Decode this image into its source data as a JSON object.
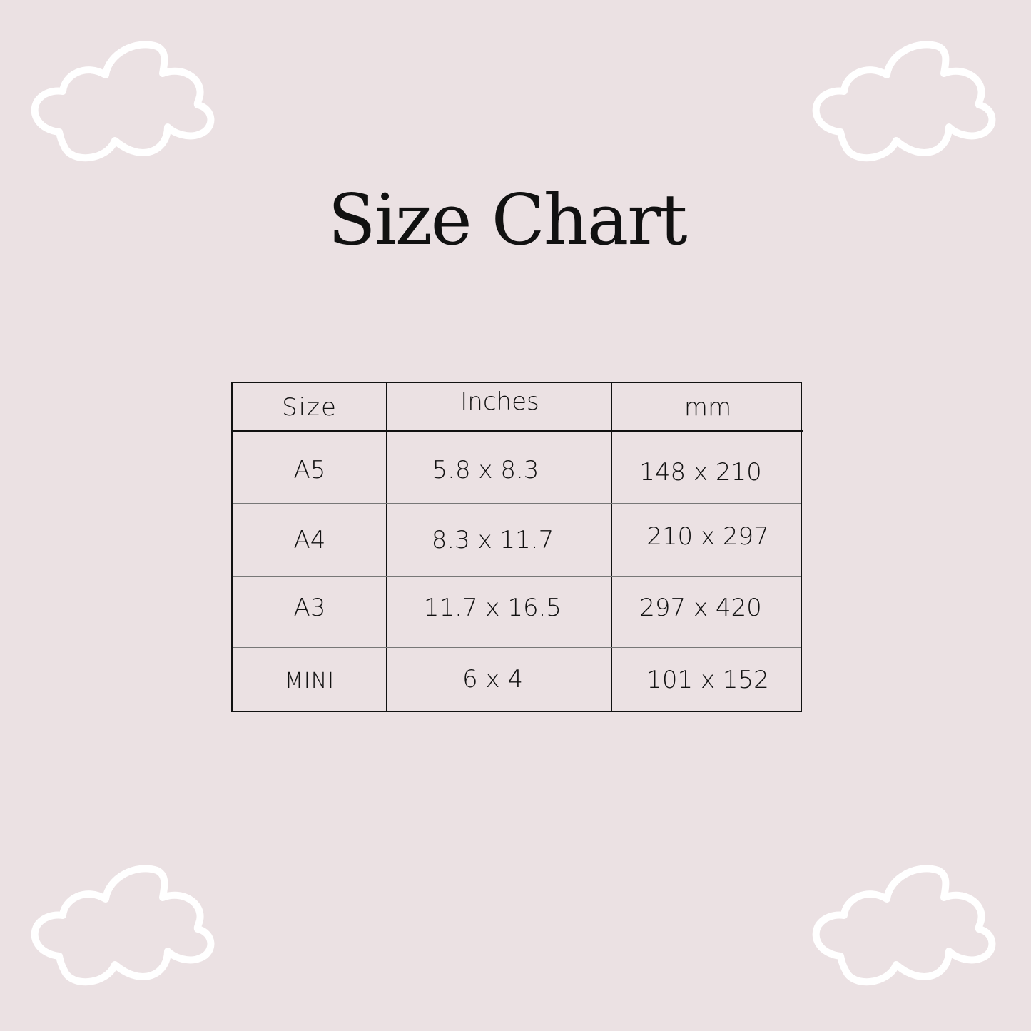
{
  "title": "Size Chart",
  "colors": {
    "background": "#ebe1e3",
    "cloud": "#ffffff",
    "text": "#111111"
  },
  "decorations": [
    "cloud-icon",
    "cloud-icon",
    "cloud-icon",
    "cloud-icon"
  ],
  "table": {
    "headers": [
      "Size",
      "Inches",
      "mm"
    ],
    "rows": [
      [
        "A5",
        "5.8 x 8.3",
        "148 x 210"
      ],
      [
        "A4",
        "8.3 x 11.7",
        "210 x 297"
      ],
      [
        "A3",
        "11.7 x 16.5",
        "297 x 420"
      ],
      [
        "MINI",
        "6 x 4",
        "101 x 152"
      ]
    ]
  }
}
